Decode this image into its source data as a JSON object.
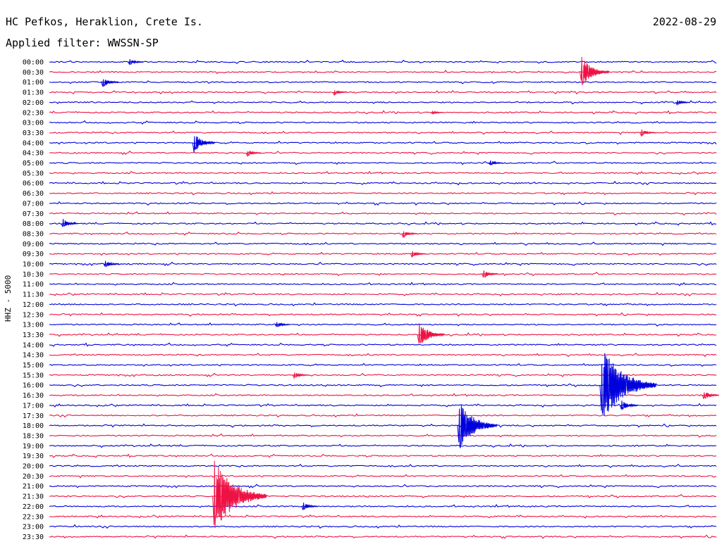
{
  "header": {
    "station": "HC Pefkos, Heraklion, Crete Is.",
    "date": "2022-08-29",
    "filter_label": "Applied filter: WWSSN-SP"
  },
  "colors": {
    "trace_a": "#0000dd",
    "trace_b": "#ee1144",
    "text": "#000000"
  },
  "chart_data": {
    "type": "line",
    "title": "HC Pefkos, Heraklion, Crete Is.",
    "ylabel": "HHZ - 5000",
    "categories": [
      "00:00",
      "00:30",
      "01:00",
      "01:30",
      "02:00",
      "02:30",
      "03:00",
      "03:30",
      "04:00",
      "04:30",
      "05:00",
      "05:30",
      "06:00",
      "06:30",
      "07:00",
      "07:30",
      "08:00",
      "08:30",
      "09:00",
      "09:30",
      "10:00",
      "10:30",
      "11:00",
      "11:30",
      "12:00",
      "12:30",
      "13:00",
      "13:30",
      "14:00",
      "14:30",
      "15:00",
      "15:30",
      "16:00",
      "16:30",
      "17:00",
      "17:30",
      "18:00",
      "18:30",
      "19:00",
      "19:30",
      "20:00",
      "20:30",
      "21:00",
      "21:30",
      "22:00",
      "22:30",
      "23:00",
      "23:30"
    ],
    "x_range_minutes": [
      0,
      30
    ],
    "series_colors": [
      "blue",
      "red"
    ],
    "events": [
      {
        "row": "00:00",
        "minute": 3.6,
        "amplitude": 0.35
      },
      {
        "row": "00:30",
        "minute": 23.9,
        "amplitude": 1.6
      },
      {
        "row": "01:00",
        "minute": 2.4,
        "amplitude": 0.55
      },
      {
        "row": "01:30",
        "minute": 12.8,
        "amplitude": 0.3
      },
      {
        "row": "02:00",
        "minute": 28.2,
        "amplitude": 0.3
      },
      {
        "row": "02:30",
        "minute": 17.2,
        "amplitude": 0.2
      },
      {
        "row": "03:30",
        "minute": 26.6,
        "amplitude": 0.4
      },
      {
        "row": "04:00",
        "minute": 6.5,
        "amplitude": 1.0
      },
      {
        "row": "04:30",
        "minute": 8.9,
        "amplitude": 0.35
      },
      {
        "row": "05:00",
        "minute": 19.8,
        "amplitude": 0.3
      },
      {
        "row": "08:00",
        "minute": 0.6,
        "amplitude": 0.5
      },
      {
        "row": "08:30",
        "minute": 15.9,
        "amplitude": 0.4
      },
      {
        "row": "09:30",
        "minute": 16.3,
        "amplitude": 0.35
      },
      {
        "row": "10:00",
        "minute": 2.5,
        "amplitude": 0.4
      },
      {
        "row": "10:30",
        "minute": 19.5,
        "amplitude": 0.45
      },
      {
        "row": "13:00",
        "minute": 10.2,
        "amplitude": 0.35
      },
      {
        "row": "13:30",
        "minute": 16.6,
        "amplitude": 1.4
      },
      {
        "row": "15:30",
        "minute": 11.0,
        "amplitude": 0.35
      },
      {
        "row": "16:00",
        "minute": 24.8,
        "amplitude": 4.0
      },
      {
        "row": "16:30",
        "minute": 29.4,
        "amplitude": 0.5
      },
      {
        "row": "17:00",
        "minute": 25.7,
        "amplitude": 0.6
      },
      {
        "row": "18:00",
        "minute": 18.4,
        "amplitude": 2.5
      },
      {
        "row": "21:30",
        "minute": 7.4,
        "amplitude": 3.8
      },
      {
        "row": "22:00",
        "minute": 11.4,
        "amplitude": 0.45
      }
    ]
  }
}
